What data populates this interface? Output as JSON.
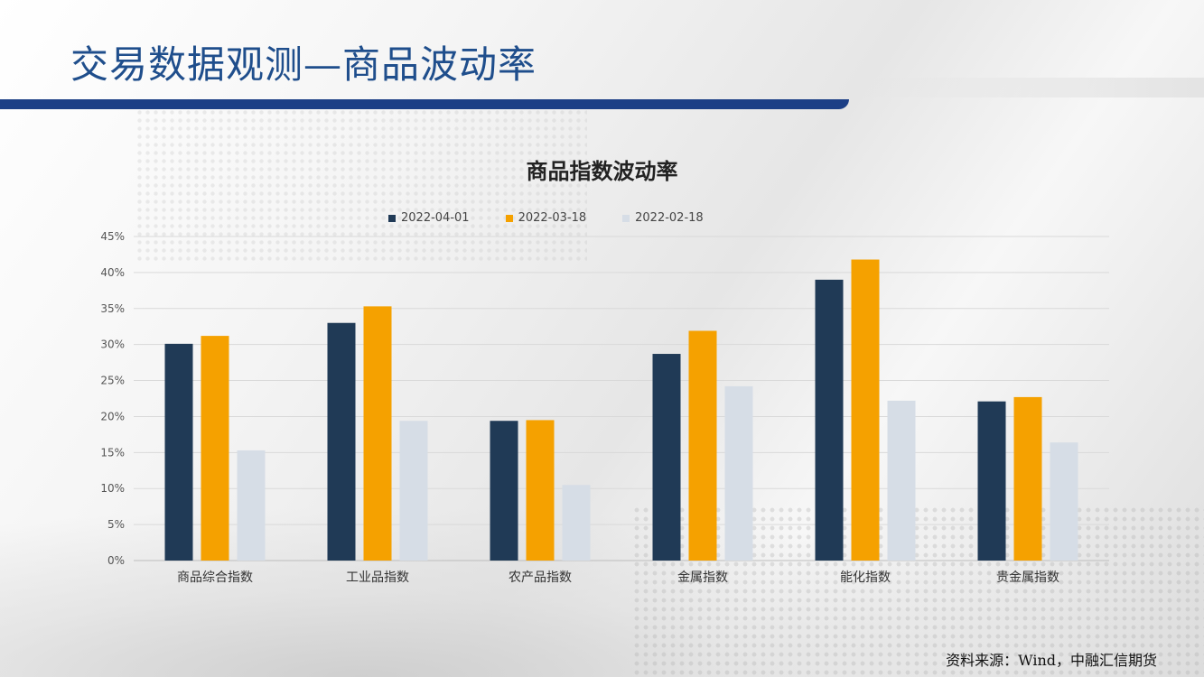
{
  "header": {
    "title": "交易数据观测—商品波动率"
  },
  "source": "资料来源：Wind，中融汇信期货",
  "colors": {
    "title_blue": "#1f4e8c",
    "bar_navy": "#1c3f86"
  },
  "chart_data": {
    "type": "bar",
    "title": "商品指数波动率",
    "categories": [
      "商品综合指数",
      "工业品指数",
      "农产品指数",
      "金属指数",
      "能化指数",
      "贵金属指数"
    ],
    "series": [
      {
        "name": "2022-04-01",
        "color": "#203a56",
        "values": [
          30.1,
          33.0,
          19.4,
          28.7,
          39.0,
          22.1
        ]
      },
      {
        "name": "2022-03-18",
        "color": "#f5a100",
        "values": [
          31.2,
          35.3,
          19.5,
          31.9,
          41.8,
          22.7
        ]
      },
      {
        "name": "2022-02-18",
        "color": "#d6dde6",
        "values": [
          15.3,
          19.4,
          10.5,
          24.2,
          22.2,
          16.4
        ]
      }
    ],
    "ylim": [
      0,
      45
    ],
    "yticks": [
      "0%",
      "5%",
      "10%",
      "15%",
      "20%",
      "25%",
      "30%",
      "35%",
      "40%",
      "45%"
    ],
    "grid": true,
    "legend_position": "top-center"
  }
}
